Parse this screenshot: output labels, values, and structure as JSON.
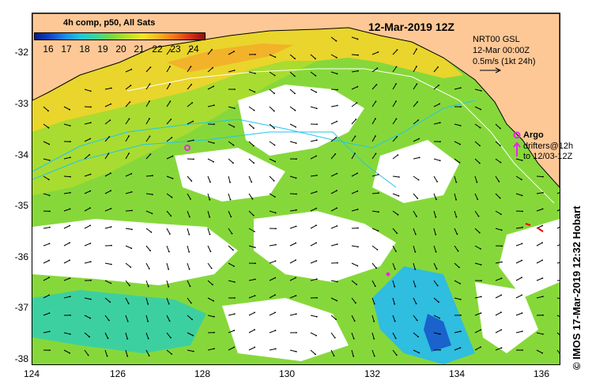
{
  "colorbar": {
    "title": "4h comp, p50, All Sats",
    "labels": [
      "16",
      "17",
      "18",
      "19",
      "20",
      "21",
      "22",
      "23",
      "24"
    ]
  },
  "map": {
    "title": "12-Mar-2019 12Z",
    "land_color": "#fdc896",
    "x_ticks": [
      "124",
      "126",
      "128",
      "130",
      "132",
      "134",
      "136"
    ],
    "y_ticks": [
      "-32",
      "-33",
      "-34",
      "-35",
      "-36",
      "-37",
      "-38"
    ]
  },
  "info": {
    "line1": "NRT00 GSL",
    "line2": "12-Mar 00:00Z",
    "line3": "0.5m/s (1kt 24h)"
  },
  "legend": {
    "argo": "Argo",
    "drifters_1": "drifters@12h",
    "drifters_2": "to 12/03-12Z"
  },
  "credit": "© IMOS 17-Mar-2019 12:32 Hobart"
}
